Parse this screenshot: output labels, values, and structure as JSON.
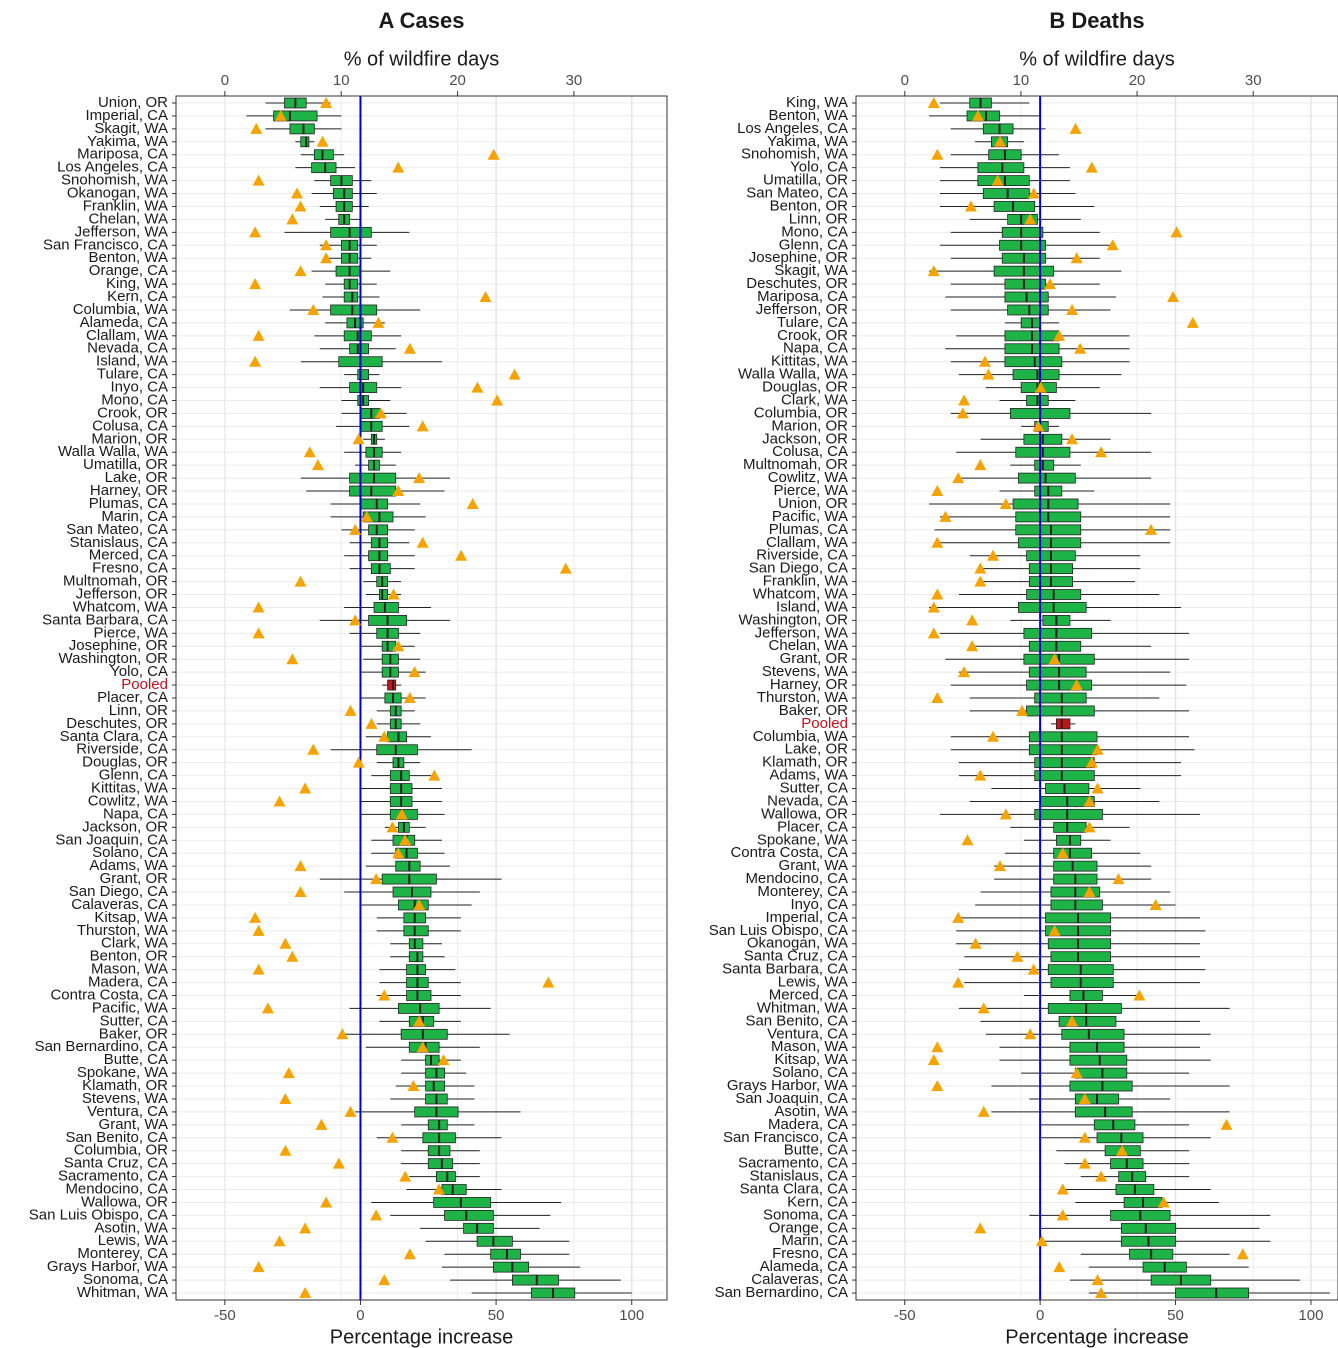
{
  "chart_data": [
    {
      "type": "box",
      "title": "A Cases",
      "x_label": "Percentage increase",
      "x2_label": "% of wildfire days",
      "xlim": [
        -68,
        113
      ],
      "xticks": [
        -50,
        0,
        50,
        100
      ],
      "x2lim": [
        -4.2,
        38.0
      ],
      "x2ticks": [
        0,
        10,
        20,
        30
      ],
      "reference_line": 0,
      "reference_color": "#0000cc",
      "box_color": "#1db347",
      "highlight_color": "#c0141c",
      "highlight_index": 45,
      "marker_color": "#f5a300",
      "grid": true,
      "categories": [
        "Union, OR",
        "Imperial, CA",
        "Skagit, WA",
        "Yakima, WA",
        "Mariposa, CA",
        "Los Angeles, CA",
        "Snohomish, WA",
        "Okanogan, WA",
        "Franklin, WA",
        "Chelan, WA",
        "Jefferson, WA",
        "San Francisco, CA",
        "Benton, WA",
        "Orange, CA",
        "King, WA",
        "Kern, CA",
        "Columbia, WA",
        "Alameda, CA",
        "Clallam, WA",
        "Nevada, CA",
        "Island, WA",
        "Tulare, CA",
        "Inyo, CA",
        "Mono, CA",
        "Crook, OR",
        "Colusa, CA",
        "Marion, OR",
        "Walla Walla, WA",
        "Umatilla, OR",
        "Lake, OR",
        "Harney, OR",
        "Plumas, CA",
        "Marin, CA",
        "San Mateo, CA",
        "Stanislaus, CA",
        "Merced, CA",
        "Fresno, CA",
        "Multnomah, OR",
        "Jefferson, OR",
        "Whatcom, WA",
        "Santa Barbara, CA",
        "Pierce, WA",
        "Josephine, OR",
        "Washington, OR",
        "Yolo, CA",
        "Pooled",
        "Placer, CA",
        "Linn, OR",
        "Deschutes, OR",
        "Santa Clara, CA",
        "Riverside, CA",
        "Douglas, OR",
        "Glenn, CA",
        "Kittitas, WA",
        "Cowlitz, WA",
        "Napa, CA",
        "Jackson, OR",
        "San Joaquin, CA",
        "Solano, CA",
        "Adams, WA",
        "Grant, OR",
        "San Diego, CA",
        "Calaveras, CA",
        "Kitsap, WA",
        "Thurston, WA",
        "Clark, WA",
        "Benton, OR",
        "Mason, WA",
        "Madera, CA",
        "Contra Costa, CA",
        "Pacific, WA",
        "Sutter, CA",
        "Baker, OR",
        "San Bernardino, CA",
        "Butte, CA",
        "Spokane, WA",
        "Klamath, OR",
        "Stevens, WA",
        "Ventura, CA",
        "Grant, WA",
        "San Benito, CA",
        "Columbia, OR",
        "Santa Cruz, CA",
        "Sacramento, CA",
        "Mendocino, CA",
        "Wallowa, OR",
        "San Luis Obispo, CA",
        "Asotin, WA",
        "Lewis, WA",
        "Monterey, CA",
        "Grays Harbor, WA",
        "Sonoma, CA",
        "Whitman, WA"
      ],
      "whisker_low": [
        -35,
        -42,
        -35,
        -24,
        -22,
        -24,
        -17,
        -18,
        -15,
        -13,
        -28,
        -15,
        -13,
        -18,
        -13,
        -14,
        -26,
        -13,
        -17,
        -15,
        -22,
        -6,
        -15,
        -7,
        -7,
        -9,
        1,
        -6,
        -2,
        -22,
        -20,
        -11,
        -11,
        -7,
        -4,
        -6,
        -4,
        1,
        2,
        -6,
        -15,
        -4,
        0,
        1,
        0,
        8,
        0,
        6,
        6,
        2,
        -11,
        6,
        4,
        0,
        0,
        0,
        9,
        4,
        4,
        2,
        -15,
        -6,
        0,
        6,
        6,
        11,
        11,
        7,
        7,
        6,
        -4,
        7,
        -7,
        2,
        15,
        15,
        13,
        11,
        -2,
        15,
        6,
        15,
        15,
        18,
        17,
        4,
        11,
        22,
        24,
        31,
        30,
        33,
        41
      ],
      "q1": [
        -28,
        -32,
        -26,
        -22,
        -17,
        -18,
        -11,
        -10,
        -9,
        -8,
        -11,
        -7,
        -7,
        -9,
        -6,
        -6,
        -11,
        -5,
        -6,
        -4,
        -8,
        -1,
        -4,
        -1,
        0,
        0,
        4,
        2,
        3,
        -4,
        -4,
        0,
        1,
        3,
        4,
        3,
        4,
        6,
        7,
        5,
        3,
        6,
        8,
        8,
        8,
        10,
        9,
        11,
        11,
        10,
        6,
        12,
        11,
        11,
        11,
        11,
        14,
        12,
        13,
        13,
        8,
        12,
        14,
        16,
        16,
        18,
        18,
        17,
        17,
        17,
        14,
        18,
        15,
        18,
        24,
        24,
        24,
        24,
        20,
        25,
        23,
        25,
        25,
        28,
        30,
        27,
        31,
        38,
        43,
        48,
        49,
        56,
        63
      ],
      "median": [
        -24,
        -26,
        -21,
        -20,
        -14,
        -13,
        -7,
        -6,
        -6,
        -6,
        -4,
        -4,
        -4,
        -4,
        -4,
        -3,
        -3,
        -2,
        -1,
        -1,
        0,
        0,
        1,
        1,
        4,
        4,
        5,
        5,
        5,
        5,
        4,
        6,
        7,
        6,
        7,
        7,
        7,
        8,
        8,
        9,
        10,
        10,
        10,
        11,
        11,
        12,
        12,
        13,
        13,
        14,
        13,
        14,
        15,
        15,
        15,
        15,
        16,
        17,
        17,
        18,
        18,
        19,
        20,
        20,
        20,
        20,
        21,
        21,
        21,
        21,
        22,
        23,
        23,
        24,
        26,
        28,
        27,
        28,
        28,
        29,
        29,
        29,
        30,
        32,
        34,
        37,
        39,
        43,
        49,
        54,
        56,
        65,
        71
      ],
      "q3": [
        -20,
        -16,
        -17,
        -19,
        -10,
        -9,
        -3,
        -3,
        -3,
        -4,
        4,
        -1,
        -1,
        0,
        -1,
        -1,
        6,
        1,
        4,
        3,
        8,
        3,
        6,
        3,
        7,
        8,
        6,
        8,
        7,
        13,
        13,
        10,
        12,
        10,
        10,
        10,
        11,
        10,
        10,
        14,
        17,
        14,
        13,
        14,
        14,
        13,
        15,
        15,
        15,
        17,
        21,
        16,
        18,
        19,
        19,
        21,
        18,
        20,
        21,
        22,
        28,
        26,
        25,
        24,
        25,
        23,
        23,
        24,
        25,
        26,
        29,
        27,
        32,
        29,
        29,
        31,
        31,
        32,
        36,
        32,
        35,
        33,
        34,
        35,
        39,
        48,
        49,
        49,
        56,
        59,
        62,
        73,
        79
      ],
      "whisker_high": [
        -11,
        -7,
        -7,
        -17,
        -6,
        -2,
        4,
        6,
        3,
        0,
        18,
        6,
        4,
        11,
        6,
        7,
        22,
        9,
        15,
        13,
        30,
        7,
        15,
        11,
        17,
        18,
        9,
        15,
        13,
        33,
        31,
        22,
        24,
        20,
        18,
        20,
        20,
        15,
        15,
        26,
        33,
        22,
        20,
        22,
        24,
        15,
        24,
        20,
        22,
        26,
        41,
        22,
        26,
        30,
        30,
        31,
        24,
        30,
        31,
        33,
        52,
        44,
        41,
        37,
        37,
        30,
        31,
        35,
        37,
        37,
        48,
        37,
        55,
        44,
        37,
        39,
        42,
        42,
        59,
        42,
        52,
        44,
        44,
        44,
        52,
        74,
        70,
        66,
        77,
        77,
        81,
        96,
        100
      ],
      "wildfire_pct": [
        8.7,
        4.8,
        2.7,
        8.4,
        23.1,
        14.9,
        2.9,
        6.2,
        6.5,
        5.8,
        2.6,
        8.7,
        8.7,
        6.5,
        2.6,
        22.4,
        7.6,
        13.2,
        2.9,
        15.9,
        2.6,
        24.9,
        21.7,
        23.4,
        13.4,
        17.0,
        11.5,
        7.3,
        8.0,
        16.7,
        14.9,
        21.3,
        12.2,
        11.2,
        17.0,
        20.3,
        29.3,
        6.5,
        14.5,
        2.9,
        11.2,
        2.9,
        14.9,
        5.8,
        16.3,
        null,
        15.9,
        10.8,
        12.6,
        13.7,
        7.6,
        11.5,
        18.0,
        6.9,
        4.7,
        15.2,
        14.4,
        15.5,
        14.9,
        6.5,
        13.0,
        6.5,
        16.7,
        2.6,
        2.9,
        5.2,
        5.8,
        2.9,
        27.8,
        13.7,
        3.7,
        16.7,
        10.1,
        17.0,
        18.8,
        5.5,
        16.2,
        5.2,
        10.8,
        8.3,
        14.4,
        5.2,
        9.8,
        15.5,
        18.4,
        8.7,
        13.0,
        6.9,
        4.7,
        15.9,
        2.9,
        13.7,
        6.9
      ]
    },
    {
      "type": "box",
      "title": "B Deaths",
      "x_label": "Percentage increase",
      "x2_label": "% of wildfire days",
      "xlim": [
        -68,
        110
      ],
      "xticks": [
        -50,
        0,
        50,
        100
      ],
      "x2lim": [
        -4.2,
        37.3
      ],
      "x2ticks": [
        0,
        10,
        20,
        30
      ],
      "reference_line": 0,
      "reference_color": "#0000cc",
      "box_color": "#1db347",
      "highlight_color": "#c0141c",
      "highlight_index": 48,
      "marker_color": "#f5a300",
      "grid": true,
      "categories": [
        "King, WA",
        "Benton, WA",
        "Los Angeles, CA",
        "Yakima, WA",
        "Snohomish, WA",
        "Yolo, CA",
        "Umatilla, OR",
        "San Mateo, CA",
        "Benton, OR",
        "Linn, OR",
        "Mono, CA",
        "Glenn, CA",
        "Josephine, OR",
        "Skagit, WA",
        "Deschutes, OR",
        "Mariposa, CA",
        "Jefferson, OR",
        "Tulare, CA",
        "Crook, OR",
        "Napa, CA",
        "Kittitas, WA",
        "Walla Walla, WA",
        "Douglas, OR",
        "Clark, WA",
        "Columbia, OR",
        "Marion, OR",
        "Jackson, OR",
        "Colusa, CA",
        "Multnomah, OR",
        "Cowlitz, WA",
        "Pierce, WA",
        "Union, OR",
        "Pacific, WA",
        "Plumas, CA",
        "Clallam, WA",
        "Riverside, CA",
        "San Diego, CA",
        "Franklin, WA",
        "Whatcom, WA",
        "Island, WA",
        "Washington, OR",
        "Jefferson, WA",
        "Chelan, WA",
        "Grant, OR",
        "Stevens, WA",
        "Harney, OR",
        "Thurston, WA",
        "Baker, OR",
        "Pooled",
        "Columbia, WA",
        "Lake, OR",
        "Klamath, OR",
        "Adams, WA",
        "Sutter, CA",
        "Nevada, CA",
        "Wallowa, OR",
        "Placer, CA",
        "Spokane, WA",
        "Contra Costa, CA",
        "Grant, WA",
        "Mendocino, CA",
        "Monterey, CA",
        "Inyo, CA",
        "Imperial, CA",
        "San Luis Obispo, CA",
        "Okanogan, WA",
        "Santa Cruz, CA",
        "Santa Barbara, CA",
        "Lewis, WA",
        "Merced, CA",
        "Whitman, WA",
        "San Benito, CA",
        "Ventura, CA",
        "Mason, WA",
        "Kitsap, WA",
        "Solano, CA",
        "Grays Harbor, WA",
        "San Joaquin, CA",
        "Asotin, WA",
        "Madera, CA",
        "San Francisco, CA",
        "Butte, CA",
        "Sacramento, CA",
        "Stanislaus, CA",
        "Santa Clara, CA",
        "Kern, CA",
        "Sonoma, CA",
        "Orange, CA",
        "Marin, CA",
        "Fresno, CA",
        "Alameda, CA",
        "Calaveras, CA",
        "San Bernardino, CA"
      ],
      "whisker_low": [
        -37,
        -41,
        -33,
        -24,
        -33,
        -37,
        -37,
        -37,
        -37,
        -26,
        -33,
        -37,
        -33,
        -41,
        -33,
        -35,
        -33,
        -13,
        -31,
        -35,
        -33,
        -30,
        -20,
        -15,
        -33,
        -7,
        -22,
        -31,
        -11,
        -30,
        -15,
        -41,
        -37,
        -39,
        -37,
        -26,
        -22,
        -22,
        -30,
        -41,
        -11,
        -37,
        -24,
        -35,
        -30,
        -33,
        -26,
        -26,
        4,
        -33,
        -33,
        -30,
        -30,
        -18,
        -26,
        -37,
        -11,
        -6,
        -13,
        -17,
        -17,
        -22,
        -24,
        -30,
        -31,
        -31,
        -28,
        -30,
        -28,
        -6,
        -30,
        -22,
        -20,
        -15,
        -15,
        -7,
        -18,
        -4,
        -18,
        0,
        0,
        6,
        9,
        15,
        9,
        13,
        -4,
        0,
        0,
        15,
        18,
        11,
        18
      ],
      "q1": [
        -26,
        -27,
        -21,
        -18,
        -19,
        -23,
        -23,
        -21,
        -17,
        -12,
        -14,
        -15,
        -14,
        -17,
        -13,
        -13,
        -12,
        -7,
        -13,
        -13,
        -13,
        -10,
        -7,
        -5,
        -11,
        -2,
        -6,
        -9,
        -2,
        -8,
        -2,
        -10,
        -9,
        -9,
        -8,
        -5,
        -4,
        -4,
        -5,
        -8,
        1,
        -6,
        -4,
        -6,
        -4,
        -5,
        -2,
        -5,
        6,
        -4,
        -4,
        -2,
        -2,
        2,
        0,
        -2,
        5,
        6,
        5,
        5,
        5,
        4,
        4,
        2,
        2,
        3,
        4,
        3,
        4,
        11,
        3,
        7,
        8,
        11,
        11,
        13,
        11,
        13,
        13,
        20,
        21,
        24,
        26,
        29,
        28,
        31,
        26,
        30,
        30,
        33,
        38,
        41,
        50
      ],
      "median": [
        -22,
        -20,
        -15,
        -15,
        -13,
        -14,
        -13,
        -12,
        -10,
        -7,
        -7,
        -7,
        -6,
        -6,
        -6,
        -5,
        -4,
        -3,
        -3,
        -3,
        -2,
        -1,
        -1,
        -1,
        0,
        0,
        1,
        1,
        1,
        2,
        3,
        3,
        3,
        4,
        4,
        4,
        4,
        4,
        5,
        5,
        6,
        6,
        6,
        7,
        7,
        7,
        8,
        8,
        8,
        8,
        8,
        8,
        8,
        9,
        10,
        10,
        10,
        11,
        11,
        12,
        13,
        13,
        13,
        14,
        14,
        14,
        14,
        15,
        15,
        16,
        17,
        17,
        18,
        21,
        22,
        23,
        23,
        21,
        24,
        27,
        30,
        30,
        32,
        34,
        35,
        38,
        37,
        39,
        40,
        41,
        46,
        52,
        65
      ],
      "q3": [
        -18,
        -15,
        -10,
        -12,
        -7,
        -6,
        -4,
        -4,
        -2,
        -1,
        1,
        2,
        2,
        5,
        2,
        3,
        3,
        0,
        7,
        7,
        8,
        7,
        6,
        3,
        11,
        3,
        8,
        11,
        5,
        13,
        8,
        14,
        15,
        15,
        15,
        13,
        12,
        12,
        15,
        17,
        11,
        19,
        15,
        20,
        17,
        19,
        17,
        20,
        11,
        21,
        21,
        20,
        20,
        18,
        20,
        23,
        17,
        15,
        19,
        21,
        21,
        22,
        23,
        26,
        26,
        26,
        26,
        27,
        27,
        23,
        30,
        28,
        31,
        31,
        32,
        32,
        34,
        29,
        34,
        35,
        38,
        37,
        38,
        39,
        42,
        45,
        48,
        50,
        50,
        49,
        54,
        63,
        77
      ],
      "whisker_high": [
        -4,
        0,
        2,
        -6,
        7,
        11,
        11,
        13,
        20,
        15,
        22,
        26,
        22,
        30,
        22,
        28,
        26,
        7,
        33,
        33,
        33,
        30,
        22,
        13,
        41,
        7,
        26,
        41,
        15,
        41,
        20,
        48,
        48,
        48,
        48,
        37,
        37,
        35,
        44,
        52,
        26,
        55,
        41,
        55,
        48,
        54,
        44,
        55,
        13,
        55,
        57,
        52,
        52,
        37,
        44,
        59,
        33,
        26,
        37,
        41,
        41,
        48,
        50,
        59,
        61,
        59,
        59,
        61,
        59,
        37,
        70,
        59,
        63,
        59,
        63,
        55,
        70,
        48,
        70,
        55,
        63,
        55,
        55,
        55,
        63,
        66,
        85,
        81,
        85,
        70,
        77,
        96,
        107
      ],
      "wildfire_pct": [
        2.5,
        6.3,
        14.7,
        8.2,
        2.8,
        16.1,
        8.0,
        11.1,
        5.7,
        10.8,
        23.4,
        17.9,
        14.8,
        2.5,
        12.5,
        23.1,
        14.4,
        24.8,
        13.3,
        15.1,
        6.9,
        7.2,
        11.7,
        5.1,
        5.0,
        11.5,
        14.4,
        16.9,
        6.5,
        4.6,
        2.8,
        8.7,
        3.5,
        21.2,
        2.8,
        7.6,
        6.5,
        6.5,
        2.8,
        2.5,
        5.8,
        2.5,
        5.8,
        12.9,
        5.1,
        14.8,
        2.8,
        10.1,
        null,
        7.6,
        16.6,
        16.1,
        6.5,
        16.6,
        15.9,
        8.7,
        15.9,
        5.4,
        13.6,
        8.2,
        18.4,
        15.9,
        21.6,
        4.6,
        12.9,
        6.1,
        9.7,
        11.1,
        4.6,
        20.2,
        6.8,
        14.4,
        10.8,
        2.8,
        2.5,
        14.8,
        2.8,
        15.5,
        6.8,
        27.7,
        15.5,
        18.7,
        15.5,
        16.9,
        13.6,
        22.3,
        13.6,
        6.5,
        11.8,
        29.1,
        13.3,
        16.6,
        16.9
      ]
    }
  ]
}
